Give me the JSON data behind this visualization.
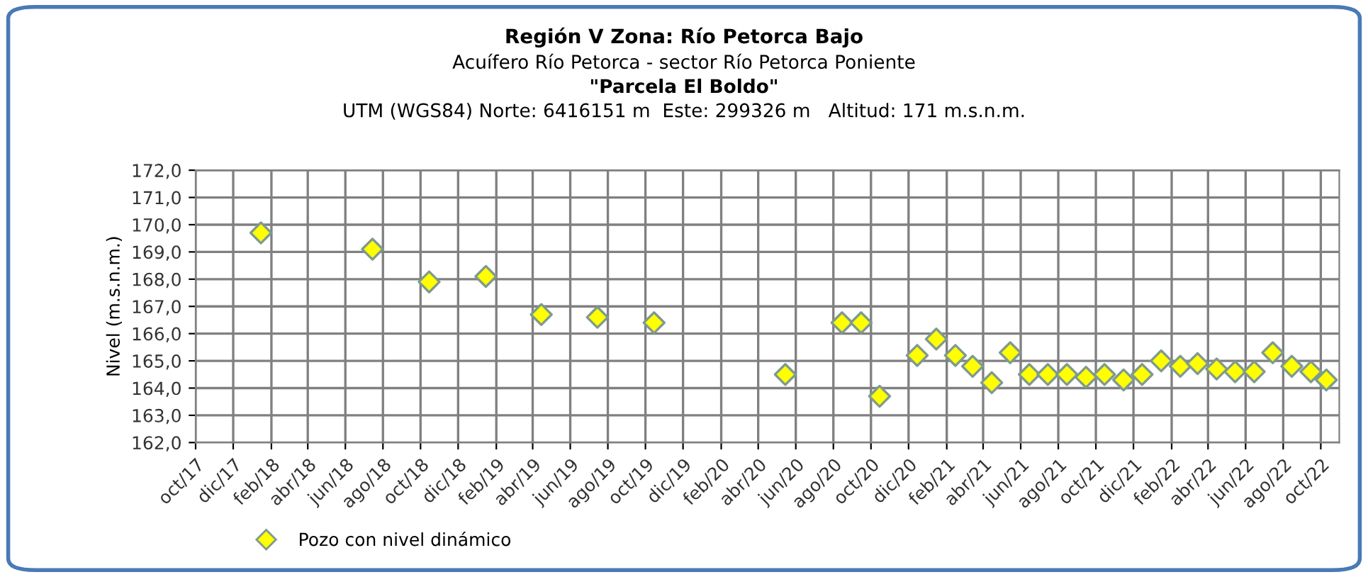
{
  "chart_data": {
    "type": "scatter",
    "title": "Región V Zona: Río Petorca Bajo",
    "subtitle": "Acuífero Río Petorca - sector Río Petorca Poniente\n\"Parcela El Boldo\"\nUTM (WGS84) Norte: 6416151 m  Este: 299326 m   Altitud: 171 m.s.n.m.",
    "ylabel": "Nivel (m.s.n.m.)",
    "series": [
      {
        "name": "Pozo con nivel dinámico",
        "color": "#ffff00",
        "x": [
          "2018-01-15",
          "2018-07-15",
          "2018-10-15",
          "2019-01-15",
          "2019-04-15",
          "2019-07-15",
          "2019-10-15",
          "2020-05-15",
          "2020-08-15",
          "2020-09-15",
          "2020-10-15",
          "2020-12-15",
          "2021-01-15",
          "2021-02-15",
          "2021-03-15",
          "2021-04-15",
          "2021-05-15",
          "2021-06-15",
          "2021-07-15",
          "2021-08-15",
          "2021-09-15",
          "2021-10-15",
          "2021-11-15",
          "2021-12-15",
          "2022-01-15",
          "2022-02-15",
          "2022-03-15",
          "2022-04-15",
          "2022-05-15",
          "2022-06-15",
          "2022-07-15",
          "2022-08-15",
          "2022-09-15",
          "2022-10-10"
        ],
        "values": [
          169.7,
          169.1,
          167.9,
          168.1,
          166.7,
          166.6,
          166.4,
          164.5,
          166.4,
          166.4,
          163.7,
          165.2,
          165.8,
          165.2,
          164.8,
          164.2,
          165.3,
          164.5,
          164.5,
          164.5,
          164.4,
          164.5,
          164.3,
          164.5,
          165.0,
          164.8,
          164.9,
          164.7,
          164.6,
          164.6,
          165.3,
          164.8,
          164.6,
          164.3
        ]
      }
    ],
    "marker": "diamond",
    "xlim": [
      "2017-10-01",
      "2022-10-31"
    ],
    "xticks": [
      {
        "value": "2017-10-01",
        "label": "oct/17"
      },
      {
        "value": "2017-12-01",
        "label": "dic/17"
      },
      {
        "value": "2018-02-01",
        "label": "feb/18"
      },
      {
        "value": "2018-04-01",
        "label": "abr/18"
      },
      {
        "value": "2018-06-01",
        "label": "jun/18"
      },
      {
        "value": "2018-08-01",
        "label": "ago/18"
      },
      {
        "value": "2018-10-01",
        "label": "oct/18"
      },
      {
        "value": "2018-12-01",
        "label": "dic/18"
      },
      {
        "value": "2019-02-01",
        "label": "feb/19"
      },
      {
        "value": "2019-04-01",
        "label": "abr/19"
      },
      {
        "value": "2019-06-01",
        "label": "jun/19"
      },
      {
        "value": "2019-08-01",
        "label": "ago/19"
      },
      {
        "value": "2019-10-01",
        "label": "oct/19"
      },
      {
        "value": "2019-12-01",
        "label": "dic/19"
      },
      {
        "value": "2020-02-01",
        "label": "feb/20"
      },
      {
        "value": "2020-04-01",
        "label": "abr/20"
      },
      {
        "value": "2020-06-01",
        "label": "jun/20"
      },
      {
        "value": "2020-08-01",
        "label": "ago/20"
      },
      {
        "value": "2020-10-01",
        "label": "oct/20"
      },
      {
        "value": "2020-12-01",
        "label": "dic/20"
      },
      {
        "value": "2021-02-01",
        "label": "feb/21"
      },
      {
        "value": "2021-04-01",
        "label": "abr/21"
      },
      {
        "value": "2021-06-01",
        "label": "jun/21"
      },
      {
        "value": "2021-08-01",
        "label": "ago/21"
      },
      {
        "value": "2021-10-01",
        "label": "oct/21"
      },
      {
        "value": "2021-12-01",
        "label": "dic/21"
      },
      {
        "value": "2022-02-01",
        "label": "feb/22"
      },
      {
        "value": "2022-04-01",
        "label": "abr/22"
      },
      {
        "value": "2022-06-01",
        "label": "jun/22"
      },
      {
        "value": "2022-08-01",
        "label": "ago/22"
      },
      {
        "value": "2022-10-01",
        "label": "oct/22"
      }
    ],
    "ylim": [
      162,
      172
    ],
    "yticks": [
      {
        "value": 162,
        "label": "162,0"
      },
      {
        "value": 163,
        "label": "163,0"
      },
      {
        "value": 164,
        "label": "164,0"
      },
      {
        "value": 165,
        "label": "165,0"
      },
      {
        "value": 166,
        "label": "166,0"
      },
      {
        "value": 167,
        "label": "167,0"
      },
      {
        "value": 168,
        "label": "168,0"
      },
      {
        "value": 169,
        "label": "169,0"
      },
      {
        "value": 170,
        "label": "170,0"
      },
      {
        "value": 171,
        "label": "171,0"
      },
      {
        "value": 172,
        "label": "172,0"
      }
    ],
    "grid": true,
    "legend": "bottom left"
  }
}
